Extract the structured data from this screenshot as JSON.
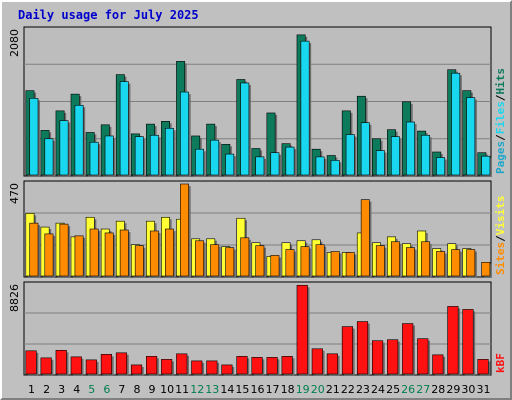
{
  "title": "Daily usage for July 2025",
  "colors": {
    "background": "#c0c0c0",
    "plot_bg": "#bdbdbd",
    "hits": "#0e7a5c",
    "files": "#19d7ef",
    "pages": "#1da7c9",
    "visits": "#ffff33",
    "sites": "#ff8c00",
    "kbf": "#ff1111",
    "weekend_label": "#007f4f",
    "weekday_label": "#000000"
  },
  "chart_data": [
    {
      "type": "bar",
      "name": "hits-files",
      "ymax_label": "2080",
      "ylim": [
        0,
        2080
      ],
      "grid": true,
      "legend": [
        "Pages",
        "/",
        "Files",
        "/",
        "Hits"
      ],
      "series": [
        {
          "name": "Hits",
          "values": [
            1210,
            640,
            920,
            1160,
            610,
            720,
            1440,
            590,
            730,
            770,
            1630,
            560,
            730,
            440,
            1370,
            380,
            890,
            450,
            2010,
            370,
            280,
            920,
            1130,
            520,
            650,
            1050,
            630,
            330,
            1510,
            1210,
            320
          ]
        },
        {
          "name": "Files",
          "values": [
            1100,
            520,
            780,
            1000,
            470,
            560,
            1340,
            550,
            570,
            670,
            1190,
            370,
            500,
            300,
            1320,
            260,
            320,
            400,
            1920,
            260,
            210,
            580,
            750,
            350,
            550,
            760,
            570,
            250,
            1460,
            1110,
            270
          ]
        }
      ],
      "x": [
        "1",
        "2",
        "3",
        "4",
        "5",
        "6",
        "7",
        "8",
        "9",
        "10",
        "11",
        "12",
        "13",
        "14",
        "15",
        "16",
        "17",
        "18",
        "19",
        "20",
        "21",
        "22",
        "23",
        "24",
        "25",
        "26",
        "27",
        "28",
        "29",
        "30",
        "31"
      ]
    },
    {
      "type": "bar",
      "name": "visits-sites",
      "ymax_label": "470",
      "ylim": [
        0,
        470
      ],
      "grid": true,
      "legend": [
        "Sites",
        "/",
        "Visits"
      ],
      "series": [
        {
          "name": "Visits",
          "values": [
            320,
            250,
            270,
            200,
            300,
            240,
            280,
            160,
            280,
            300,
            290,
            190,
            190,
            150,
            295,
            170,
            100,
            170,
            180,
            185,
            120,
            120,
            220,
            170,
            200,
            165,
            230,
            140,
            165,
            140,
            0
          ]
        },
        {
          "name": "Sites",
          "values": [
            270,
            215,
            265,
            205,
            240,
            220,
            235,
            155,
            230,
            240,
            470,
            180,
            160,
            145,
            195,
            155,
            105,
            135,
            150,
            160,
            125,
            120,
            390,
            155,
            175,
            145,
            175,
            125,
            135,
            135,
            70
          ]
        }
      ]
    },
    {
      "type": "bar",
      "name": "kbf",
      "ymax_label": "8826",
      "ylim": [
        0,
        8826
      ],
      "grid": true,
      "legend": [
        "kB",
        "F"
      ],
      "series": [
        {
          "name": "kB F",
          "values": [
            2300,
            1600,
            2350,
            1700,
            1400,
            1950,
            2100,
            900,
            1750,
            1450,
            2000,
            1300,
            1300,
            900,
            1750,
            1650,
            1650,
            1750,
            8800,
            2500,
            2000,
            4700,
            5200,
            3300,
            3400,
            5000,
            3500,
            1900,
            6700,
            6400,
            1450
          ]
        }
      ]
    }
  ],
  "days": [
    {
      "label": "1",
      "weekend": false
    },
    {
      "label": "2",
      "weekend": false
    },
    {
      "label": "3",
      "weekend": false
    },
    {
      "label": "4",
      "weekend": false
    },
    {
      "label": "5",
      "weekend": true
    },
    {
      "label": "6",
      "weekend": true
    },
    {
      "label": "7",
      "weekend": false
    },
    {
      "label": "8",
      "weekend": false
    },
    {
      "label": "9",
      "weekend": false
    },
    {
      "label": "10",
      "weekend": false
    },
    {
      "label": "11",
      "weekend": false
    },
    {
      "label": "12",
      "weekend": true
    },
    {
      "label": "13",
      "weekend": true
    },
    {
      "label": "14",
      "weekend": false
    },
    {
      "label": "15",
      "weekend": false
    },
    {
      "label": "16",
      "weekend": false
    },
    {
      "label": "17",
      "weekend": false
    },
    {
      "label": "18",
      "weekend": false
    },
    {
      "label": "19",
      "weekend": true
    },
    {
      "label": "20",
      "weekend": true
    },
    {
      "label": "21",
      "weekend": false
    },
    {
      "label": "22",
      "weekend": false
    },
    {
      "label": "23",
      "weekend": false
    },
    {
      "label": "24",
      "weekend": false
    },
    {
      "label": "25",
      "weekend": false
    },
    {
      "label": "26",
      "weekend": true
    },
    {
      "label": "27",
      "weekend": true
    },
    {
      "label": "28",
      "weekend": false
    },
    {
      "label": "29",
      "weekend": false
    },
    {
      "label": "30",
      "weekend": false
    },
    {
      "label": "31",
      "weekend": false
    }
  ]
}
